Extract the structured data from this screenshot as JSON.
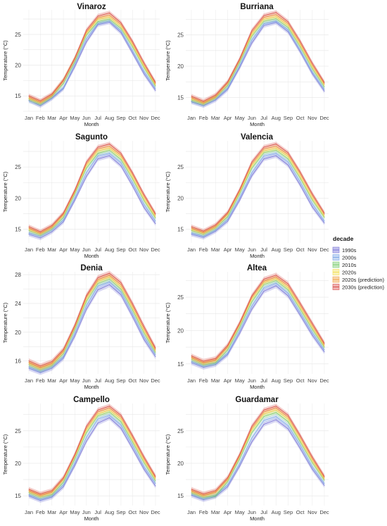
{
  "legend": {
    "title": "decade",
    "placement": "right",
    "entries": [
      {
        "name": "1990s",
        "color": "#7b76d6"
      },
      {
        "name": "2000s",
        "color": "#7fa8e6"
      },
      {
        "name": "2010s",
        "color": "#7ccb72"
      },
      {
        "name": "2020s",
        "color": "#f2e05a"
      },
      {
        "name": "2020s (prediction)",
        "color": "#f0a34a"
      },
      {
        "name": "2030s (prediction)",
        "color": "#d9534f"
      }
    ]
  },
  "chart_data": [
    {
      "type": "line",
      "title": "Vinaroz",
      "xlabel": "Month",
      "ylabel": "Temperature (°C)",
      "categories": [
        "Jan",
        "Feb",
        "Mar",
        "Apr",
        "May",
        "Jun",
        "Jul",
        "Aug",
        "Sep",
        "Oct",
        "Nov",
        "Dec"
      ],
      "ylim": [
        12.5,
        29
      ],
      "yticks": [
        15,
        20,
        25
      ],
      "grid": true,
      "series": [
        {
          "name": "1990s",
          "values": [
            14.3,
            13.4,
            14.6,
            16.2,
            19.8,
            23.8,
            26.6,
            27.0,
            25.3,
            22.0,
            18.6,
            15.9
          ]
        },
        {
          "name": "2000s",
          "values": [
            14.2,
            13.6,
            14.7,
            16.3,
            20.2,
            24.3,
            26.8,
            27.2,
            25.6,
            22.4,
            19.0,
            16.2
          ]
        },
        {
          "name": "2010s",
          "values": [
            14.5,
            13.7,
            14.9,
            17.0,
            20.6,
            24.9,
            27.1,
            27.5,
            26.0,
            23.0,
            19.6,
            16.6
          ]
        },
        {
          "name": "2020s",
          "values": [
            14.6,
            13.9,
            15.1,
            17.6,
            21.2,
            25.2,
            27.5,
            27.8,
            26.3,
            23.3,
            19.8,
            16.8
          ]
        },
        {
          "name": "2020s (prediction)",
          "values": [
            14.8,
            14.0,
            15.1,
            17.4,
            21.0,
            25.4,
            27.7,
            28.1,
            26.6,
            23.6,
            20.1,
            17.0
          ]
        },
        {
          "name": "2030s (prediction)",
          "values": [
            15.0,
            14.2,
            15.3,
            17.6,
            21.2,
            25.7,
            28.0,
            28.5,
            26.9,
            23.9,
            20.4,
            17.2
          ]
        }
      ]
    },
    {
      "type": "line",
      "title": "Burriana",
      "xlabel": "Month",
      "ylabel": "Temperature (°C)",
      "categories": [
        "Jan",
        "Feb",
        "Mar",
        "Apr",
        "May",
        "Jun",
        "Jul",
        "Aug",
        "Sep",
        "Oct",
        "Nov",
        "Dec"
      ],
      "ylim": [
        12.8,
        29
      ],
      "yticks": [
        15,
        20,
        25
      ],
      "grid": true,
      "series": [
        {
          "name": "1990s",
          "values": [
            14.3,
            13.7,
            14.6,
            16.3,
            19.8,
            23.7,
            26.5,
            27.0,
            25.5,
            22.3,
            18.8,
            16.0
          ]
        },
        {
          "name": "2000s",
          "values": [
            14.4,
            13.8,
            14.8,
            16.5,
            20.1,
            24.2,
            26.8,
            27.2,
            25.8,
            22.6,
            19.1,
            16.3
          ]
        },
        {
          "name": "2010s",
          "values": [
            14.6,
            14.0,
            15.0,
            16.9,
            20.6,
            24.8,
            27.2,
            27.6,
            26.2,
            23.1,
            19.6,
            16.7
          ]
        },
        {
          "name": "2020s",
          "values": [
            14.8,
            14.1,
            15.1,
            17.3,
            21.0,
            25.1,
            27.5,
            27.9,
            26.5,
            23.4,
            19.9,
            17.0
          ]
        },
        {
          "name": "2020s (prediction)",
          "values": [
            15.0,
            14.2,
            15.2,
            17.3,
            21.0,
            25.4,
            27.8,
            28.2,
            26.8,
            23.7,
            20.2,
            17.2
          ]
        },
        {
          "name": "2030s (prediction)",
          "values": [
            15.2,
            14.4,
            15.4,
            17.5,
            21.2,
            25.7,
            28.1,
            28.6,
            27.1,
            24.0,
            20.5,
            17.4
          ]
        }
      ]
    },
    {
      "type": "line",
      "title": "Sagunto",
      "xlabel": "Month",
      "ylabel": "Temperature (°C)",
      "categories": [
        "Jan",
        "Feb",
        "Mar",
        "Apr",
        "May",
        "Jun",
        "Jul",
        "Aug",
        "Sep",
        "Oct",
        "Nov",
        "Dec"
      ],
      "ylim": [
        12.8,
        29.2
      ],
      "yticks": [
        15,
        20,
        25
      ],
      "grid": true,
      "series": [
        {
          "name": "1990s",
          "values": [
            14.2,
            13.6,
            14.6,
            16.2,
            19.7,
            23.5,
            26.3,
            26.8,
            25.2,
            22.0,
            18.5,
            15.9
          ]
        },
        {
          "name": "2000s",
          "values": [
            14.4,
            13.9,
            14.9,
            16.5,
            20.1,
            24.1,
            26.8,
            27.2,
            25.7,
            22.5,
            19.0,
            16.3
          ]
        },
        {
          "name": "2010s",
          "values": [
            14.8,
            14.1,
            15.1,
            16.9,
            20.7,
            24.8,
            27.2,
            27.7,
            26.2,
            23.1,
            19.6,
            16.8
          ]
        },
        {
          "name": "2020s",
          "values": [
            15.0,
            14.3,
            15.3,
            17.3,
            21.0,
            25.2,
            27.6,
            28.0,
            26.6,
            23.4,
            19.9,
            17.0
          ]
        },
        {
          "name": "2020s (prediction)",
          "values": [
            15.2,
            14.4,
            15.4,
            17.4,
            21.1,
            25.5,
            27.9,
            28.3,
            26.9,
            23.8,
            20.3,
            17.3
          ]
        },
        {
          "name": "2030s (prediction)",
          "values": [
            15.4,
            14.6,
            15.6,
            17.6,
            21.3,
            25.8,
            28.2,
            28.7,
            27.2,
            24.1,
            20.6,
            17.5
          ]
        }
      ]
    },
    {
      "type": "line",
      "title": "Valencia",
      "xlabel": "Month",
      "ylabel": "Temperature (°C)",
      "categories": [
        "Jan",
        "Feb",
        "Mar",
        "Apr",
        "May",
        "Jun",
        "Jul",
        "Aug",
        "Sep",
        "Oct",
        "Nov",
        "Dec"
      ],
      "ylim": [
        12.8,
        29.2
      ],
      "yticks": [
        15,
        20,
        25
      ],
      "grid": true,
      "series": [
        {
          "name": "1990s",
          "values": [
            14.2,
            13.7,
            14.7,
            16.3,
            19.7,
            23.6,
            26.3,
            26.8,
            25.3,
            22.1,
            18.6,
            16.0
          ]
        },
        {
          "name": "2000s",
          "values": [
            14.4,
            13.9,
            14.9,
            16.6,
            20.1,
            24.1,
            26.8,
            27.2,
            25.8,
            22.6,
            19.1,
            16.3
          ]
        },
        {
          "name": "2010s",
          "values": [
            14.8,
            14.2,
            15.2,
            17.0,
            20.7,
            24.8,
            27.3,
            27.7,
            26.3,
            23.2,
            19.7,
            16.9
          ]
        },
        {
          "name": "2020s",
          "values": [
            15.0,
            14.4,
            15.4,
            17.4,
            21.0,
            25.2,
            27.6,
            28.0,
            26.7,
            23.5,
            20.0,
            17.1
          ]
        },
        {
          "name": "2020s (prediction)",
          "values": [
            15.2,
            14.5,
            15.5,
            17.5,
            21.2,
            25.5,
            27.9,
            28.3,
            27.0,
            23.9,
            20.4,
            17.4
          ]
        },
        {
          "name": "2030s (prediction)",
          "values": [
            15.4,
            14.7,
            15.7,
            17.7,
            21.4,
            25.8,
            28.2,
            28.7,
            27.3,
            24.2,
            20.7,
            17.6
          ]
        }
      ]
    },
    {
      "type": "line",
      "title": "Denia",
      "xlabel": "Month",
      "ylabel": "Temperature (°C)",
      "categories": [
        "Jan",
        "Feb",
        "Mar",
        "Apr",
        "May",
        "Jun",
        "Jul",
        "Aug",
        "Sep",
        "Oct",
        "Nov",
        "Dec"
      ],
      "ylim": [
        14.2,
        28.4
      ],
      "yticks": [
        16,
        20,
        24,
        28
      ],
      "grid": true,
      "series": [
        {
          "name": "1990s",
          "values": [
            15.0,
            14.4,
            15.0,
            16.4,
            19.5,
            23.2,
            25.9,
            26.6,
            25.2,
            22.2,
            19.0,
            16.6
          ]
        },
        {
          "name": "2000s",
          "values": [
            15.2,
            14.6,
            15.2,
            16.6,
            19.9,
            23.7,
            26.4,
            27.0,
            25.6,
            22.6,
            19.4,
            16.9
          ]
        },
        {
          "name": "2010s",
          "values": [
            15.5,
            14.8,
            15.4,
            17.0,
            20.4,
            24.3,
            26.8,
            27.4,
            26.0,
            23.1,
            19.9,
            17.2
          ]
        },
        {
          "name": "2020s",
          "values": [
            15.7,
            15.0,
            15.6,
            17.3,
            20.7,
            24.6,
            27.1,
            27.7,
            26.3,
            23.4,
            20.2,
            17.4
          ]
        },
        {
          "name": "2020s (prediction)",
          "values": [
            15.8,
            15.1,
            15.7,
            17.4,
            20.8,
            24.9,
            27.3,
            27.9,
            26.6,
            23.7,
            20.5,
            17.6
          ]
        },
        {
          "name": "2030s (prediction)",
          "values": [
            16.0,
            15.3,
            15.9,
            17.6,
            21.0,
            25.1,
            27.6,
            28.2,
            26.9,
            24.0,
            20.8,
            17.8
          ]
        }
      ]
    },
    {
      "type": "line",
      "title": "Altea",
      "xlabel": "Month",
      "ylabel": "Temperature (°C)",
      "categories": [
        "Jan",
        "Feb",
        "Mar",
        "Apr",
        "May",
        "Jun",
        "Jul",
        "Aug",
        "Sep",
        "Oct",
        "Nov",
        "Dec"
      ],
      "ylim": [
        13.5,
        28.8
      ],
      "yticks": [
        15,
        20,
        25
      ],
      "grid": true,
      "series": [
        {
          "name": "1990s",
          "values": [
            15.2,
            14.5,
            14.9,
            16.4,
            19.6,
            23.2,
            25.9,
            26.7,
            25.2,
            22.3,
            19.3,
            16.8
          ]
        },
        {
          "name": "2000s",
          "values": [
            15.4,
            14.7,
            15.1,
            16.6,
            20.0,
            23.7,
            26.4,
            27.1,
            25.6,
            22.7,
            19.7,
            17.1
          ]
        },
        {
          "name": "2010s",
          "values": [
            15.7,
            14.9,
            15.2,
            17.1,
            20.5,
            24.3,
            26.9,
            27.5,
            26.1,
            23.2,
            20.2,
            17.5
          ]
        },
        {
          "name": "2020s",
          "values": [
            15.9,
            15.1,
            15.5,
            17.5,
            20.9,
            24.7,
            27.2,
            27.8,
            26.4,
            23.5,
            20.5,
            17.7
          ]
        },
        {
          "name": "2020s (prediction)",
          "values": [
            16.0,
            15.2,
            15.6,
            17.6,
            21.0,
            25.0,
            27.4,
            28.0,
            26.7,
            23.8,
            20.8,
            17.9
          ]
        },
        {
          "name": "2030s (prediction)",
          "values": [
            16.2,
            15.4,
            15.8,
            17.8,
            21.2,
            25.2,
            27.7,
            28.3,
            27.0,
            24.1,
            21.1,
            18.1
          ]
        }
      ]
    },
    {
      "type": "line",
      "title": "Campello",
      "xlabel": "Month",
      "ylabel": "Temperature (°C)",
      "categories": [
        "Jan",
        "Feb",
        "Mar",
        "Apr",
        "May",
        "Jun",
        "Jul",
        "Aug",
        "Sep",
        "Oct",
        "Nov",
        "Dec"
      ],
      "ylim": [
        13.5,
        29.2
      ],
      "yticks": [
        15,
        20,
        25
      ],
      "grid": true,
      "series": [
        {
          "name": "1990s",
          "values": [
            15.0,
            14.3,
            14.8,
            16.4,
            19.7,
            23.4,
            26.2,
            27.0,
            25.4,
            22.3,
            19.1,
            16.5
          ]
        },
        {
          "name": "2000s",
          "values": [
            15.2,
            14.5,
            15.0,
            16.7,
            20.1,
            24.0,
            26.8,
            27.4,
            25.9,
            22.8,
            19.5,
            16.9
          ]
        },
        {
          "name": "2010s",
          "values": [
            15.5,
            14.8,
            15.2,
            17.1,
            20.7,
            24.7,
            27.3,
            27.9,
            26.4,
            23.3,
            20.1,
            17.3
          ]
        },
        {
          "name": "2020s",
          "values": [
            15.7,
            15.0,
            15.5,
            17.5,
            21.1,
            25.1,
            27.6,
            28.2,
            26.8,
            23.6,
            20.4,
            17.6
          ]
        },
        {
          "name": "2020s (prediction)",
          "values": [
            15.8,
            15.1,
            15.6,
            17.6,
            21.2,
            25.4,
            27.9,
            28.5,
            27.1,
            24.0,
            20.7,
            17.8
          ]
        },
        {
          "name": "2030s (prediction)",
          "values": [
            16.0,
            15.3,
            15.8,
            17.8,
            21.4,
            25.7,
            28.2,
            28.8,
            27.4,
            24.3,
            21.0,
            18.0
          ]
        }
      ]
    },
    {
      "type": "line",
      "title": "Guardamar",
      "xlabel": "Month",
      "ylabel": "Temperature (°C)",
      "categories": [
        "Jan",
        "Feb",
        "Mar",
        "Apr",
        "May",
        "Jun",
        "Jul",
        "Aug",
        "Sep",
        "Oct",
        "Nov",
        "Dec"
      ],
      "ylim": [
        13.5,
        29.2
      ],
      "yticks": [
        15,
        20,
        25
      ],
      "grid": true,
      "series": [
        {
          "name": "1990s",
          "values": [
            15.1,
            14.4,
            14.9,
            16.4,
            19.6,
            23.3,
            26.0,
            26.7,
            25.3,
            22.3,
            19.1,
            16.6
          ]
        },
        {
          "name": "2000s",
          "values": [
            15.3,
            14.6,
            15.1,
            16.7,
            20.0,
            23.9,
            26.6,
            27.2,
            25.8,
            22.8,
            19.5,
            16.9
          ]
        },
        {
          "name": "2010s",
          "values": [
            15.5,
            14.8,
            15.0,
            17.2,
            20.7,
            24.7,
            27.2,
            27.8,
            26.4,
            23.3,
            20.1,
            17.4
          ]
        },
        {
          "name": "2020s",
          "values": [
            15.7,
            15.0,
            15.5,
            17.5,
            21.1,
            25.1,
            27.6,
            28.2,
            26.8,
            23.6,
            20.4,
            17.6
          ]
        },
        {
          "name": "2020s (prediction)",
          "values": [
            15.8,
            15.1,
            15.6,
            17.6,
            21.2,
            25.4,
            27.9,
            28.5,
            27.1,
            24.0,
            20.7,
            17.8
          ]
        },
        {
          "name": "2030s (prediction)",
          "values": [
            16.0,
            15.3,
            15.8,
            17.8,
            21.4,
            25.7,
            28.2,
            28.8,
            27.4,
            24.3,
            21.0,
            18.0
          ]
        }
      ]
    }
  ]
}
